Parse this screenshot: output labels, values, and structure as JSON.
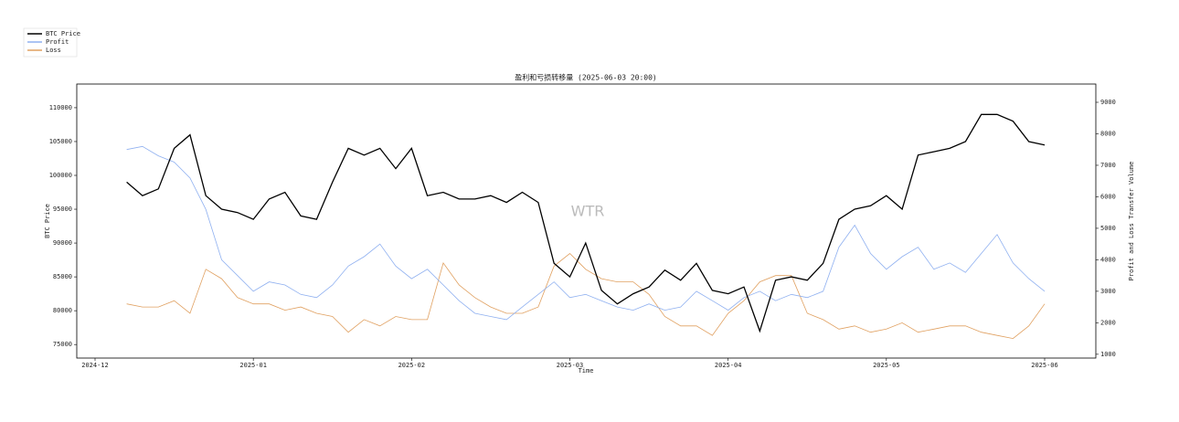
{
  "chart_data": {
    "type": "line",
    "title": "盈利和亏损转移量 (2025-06-03 20:00)",
    "xlabel": "Time",
    "ylabel": "BTC Price",
    "y2label": "Profit and Loss Transfer Volume",
    "watermark": "WTR",
    "categories": [
      "2024-12",
      null,
      null,
      null,
      null,
      null,
      null,
      null,
      null,
      null,
      "2025-01",
      null,
      null,
      null,
      null,
      null,
      null,
      null,
      null,
      null,
      "2025-02",
      null,
      null,
      null,
      null,
      null,
      null,
      null,
      null,
      null,
      "2025-03",
      null,
      null,
      null,
      null,
      null,
      null,
      null,
      null,
      null,
      "2025-04",
      null,
      null,
      null,
      null,
      null,
      null,
      null,
      null,
      null,
      "2025-05",
      null,
      null,
      null,
      null,
      null,
      null,
      null,
      null,
      null,
      "2025-06"
    ],
    "series": [
      {
        "name": "BTC Price",
        "color": "#000000",
        "values": [
          null,
          null,
          99000,
          97000,
          98000,
          104000,
          106000,
          97000,
          95000,
          94500,
          93500,
          96500,
          97500,
          94000,
          93500,
          99000,
          104000,
          103000,
          104000,
          101000,
          104000,
          97000,
          97500,
          96500,
          96500,
          97000,
          96000,
          97500,
          96000,
          87000,
          85000,
          90000,
          83000,
          81000,
          82500,
          83500,
          86000,
          84500,
          87000,
          83000,
          82500,
          83500,
          77000,
          84500,
          85000,
          84500,
          87000,
          93500,
          95000,
          95500,
          97000,
          95000,
          103000,
          103500,
          104000,
          105000,
          109000,
          109000,
          108000,
          105000,
          104500
        ]
      },
      {
        "name": "Profit",
        "color": "#8fb0f0",
        "axis": "y2",
        "values": [
          null,
          null,
          7500,
          7600,
          7300,
          7100,
          6600,
          5600,
          4000,
          3500,
          3000,
          3300,
          3200,
          2900,
          2800,
          3200,
          3800,
          4100,
          4500,
          3800,
          3400,
          3700,
          3200,
          2700,
          2300,
          2200,
          2100,
          2500,
          2900,
          3300,
          2800,
          2900,
          2700,
          2500,
          2400,
          2600,
          2400,
          2500,
          3000,
          2700,
          2400,
          2800,
          3000,
          2700,
          2900,
          2800,
          3000,
          4400,
          5100,
          4200,
          3700,
          4100,
          4400,
          3700,
          3900,
          3600,
          4200,
          4800,
          3900,
          3400,
          3000
        ]
      },
      {
        "name": "Loss",
        "color": "#e0a060",
        "axis": "y2",
        "values": [
          null,
          null,
          2600,
          2500,
          2500,
          2700,
          2300,
          3700,
          3400,
          2800,
          2600,
          2600,
          2400,
          2500,
          2300,
          2200,
          1700,
          2100,
          1900,
          2200,
          2100,
          2100,
          3900,
          3200,
          2800,
          2500,
          2300,
          2300,
          2500,
          3800,
          4200,
          3700,
          3400,
          3300,
          3300,
          2900,
          2200,
          1900,
          1900,
          1600,
          2300,
          2700,
          3300,
          3500,
          3500,
          2300,
          2100,
          1800,
          1900,
          1700,
          1800,
          2000,
          1700,
          1800,
          1900,
          1900,
          1700,
          1600,
          1500,
          1900,
          2600
        ]
      }
    ],
    "ylim": [
      73000,
      113500
    ],
    "yticks": [
      75000,
      80000,
      85000,
      90000,
      95000,
      100000,
      105000,
      110000
    ],
    "y2lim": [
      880,
      9580
    ],
    "y2ticks": [
      1000,
      2000,
      3000,
      4000,
      5000,
      6000,
      7000,
      8000,
      9000
    ]
  }
}
